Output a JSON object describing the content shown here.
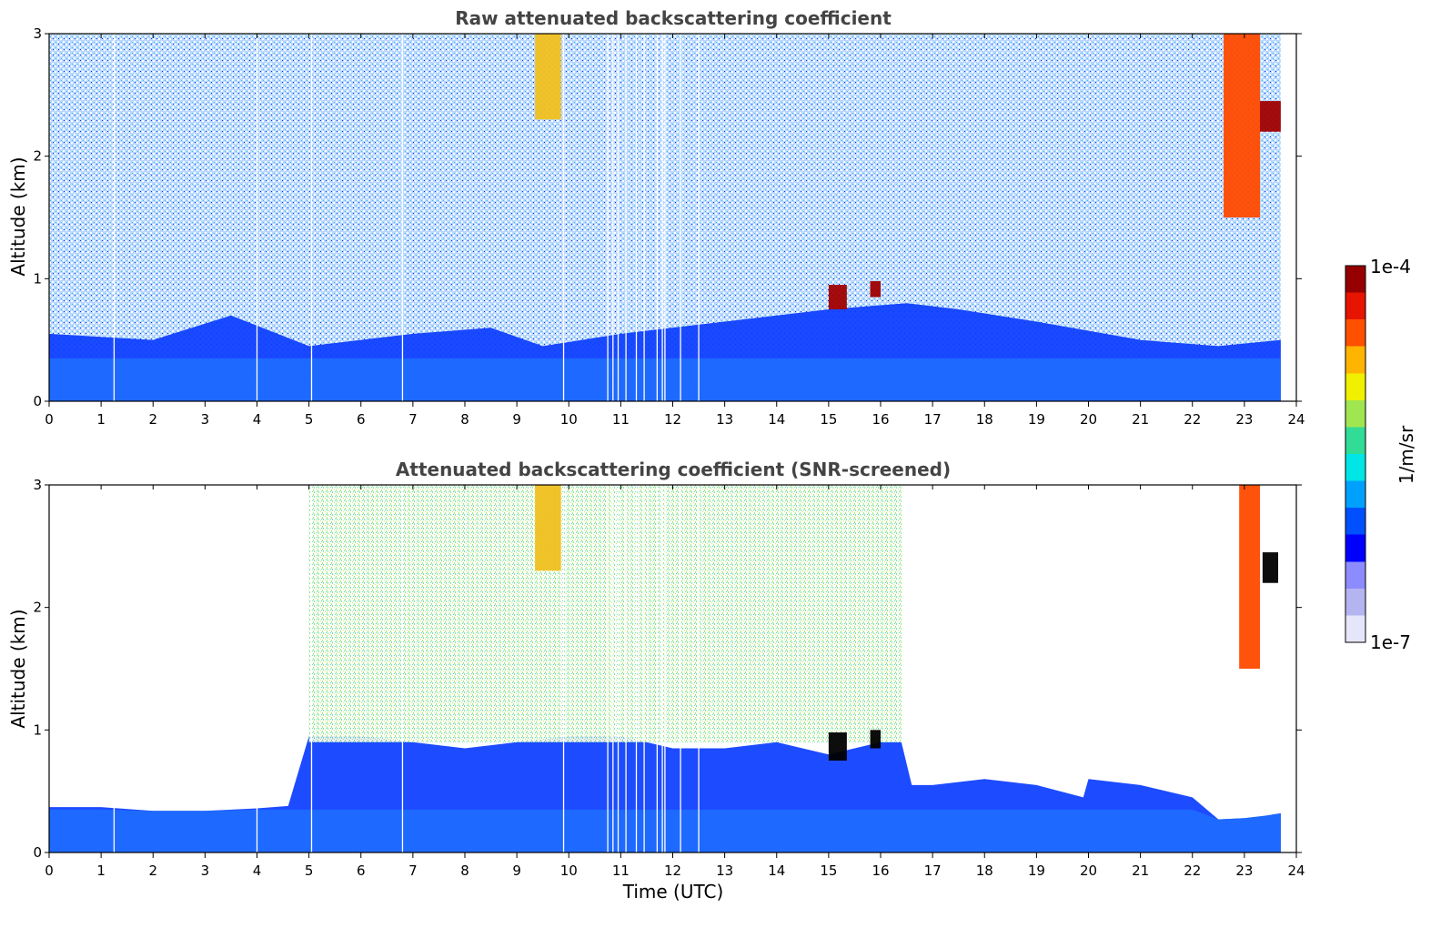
{
  "chart_data": [
    {
      "type": "heatmap",
      "title": "Raw attenuated backscattering coefficient",
      "xlabel": "",
      "ylabel": "Altitude (km)",
      "xlim": [
        0,
        24
      ],
      "ylim": [
        0,
        3
      ],
      "xticks": [
        "0",
        "1",
        "2",
        "3",
        "4",
        "5",
        "6",
        "7",
        "8",
        "9",
        "10",
        "11",
        "12",
        "13",
        "14",
        "15",
        "16",
        "17",
        "18",
        "19",
        "20",
        "21",
        "22",
        "23",
        "24"
      ],
      "yticks": [
        "0",
        "1",
        "2",
        "3"
      ],
      "data_end_time": 23.7,
      "features": [
        {
          "kind": "boundary_layer",
          "x": [
            0,
            2,
            3.5,
            5,
            6,
            7,
            8.5,
            9.5,
            11,
            13,
            15,
            16.5,
            17.5,
            19,
            21,
            22.5,
            23.7
          ],
          "top_km": [
            0.55,
            0.5,
            0.7,
            0.45,
            0.5,
            0.55,
            0.6,
            0.45,
            0.55,
            0.65,
            0.75,
            0.8,
            0.75,
            0.65,
            0.5,
            0.45,
            0.5
          ]
        },
        {
          "kind": "aerosol_streak",
          "x_start": 9.35,
          "x_end": 9.85,
          "alt_bottom_km": 2.3,
          "alt_top_km": 3.0,
          "level": "yellow-orange"
        },
        {
          "kind": "cloud",
          "x_start": 15.0,
          "x_end": 15.35,
          "alt_bottom_km": 0.75,
          "alt_top_km": 0.95,
          "level": "dark-red"
        },
        {
          "kind": "cloud",
          "x_start": 15.8,
          "x_end": 16.0,
          "alt_bottom_km": 0.85,
          "alt_top_km": 0.98,
          "level": "dark-red"
        },
        {
          "kind": "cloud",
          "x_start": 22.6,
          "x_end": 23.3,
          "alt_bottom_km": 1.5,
          "alt_top_km": 3.0,
          "level": "red-orange"
        },
        {
          "kind": "cloud",
          "x_start": 23.3,
          "x_end": 23.7,
          "alt_bottom_km": 2.2,
          "alt_top_km": 2.45,
          "level": "dark-red"
        }
      ],
      "gap_times": [
        1.25,
        4.0,
        5.05,
        6.8,
        9.9,
        10.75,
        10.85,
        10.95,
        11.1,
        11.3,
        11.45,
        11.7,
        11.8,
        11.85,
        12.15,
        12.5
      ]
    },
    {
      "type": "heatmap",
      "title": "Attenuated backscattering coefficient (SNR-screened)",
      "xlabel": "Time (UTC)",
      "ylabel": "Altitude (km)",
      "xlim": [
        0,
        24
      ],
      "ylim": [
        0,
        3
      ],
      "xticks": [
        "0",
        "1",
        "2",
        "3",
        "4",
        "5",
        "6",
        "7",
        "8",
        "9",
        "10",
        "11",
        "12",
        "13",
        "14",
        "15",
        "16",
        "17",
        "18",
        "19",
        "20",
        "21",
        "22",
        "23",
        "24"
      ],
      "yticks": [
        "0",
        "1",
        "2",
        "3"
      ],
      "data_end_time": 23.7,
      "features": [
        {
          "kind": "valid_region",
          "x": [
            0,
            1,
            2,
            3,
            4,
            4.6,
            5,
            6,
            7,
            8,
            9,
            10,
            11,
            12,
            13,
            14,
            15,
            16,
            16.4,
            16.6,
            17,
            18,
            19,
            19.9,
            20,
            21,
            22,
            22.5,
            23,
            23.4,
            23.7
          ],
          "top_km": [
            0.37,
            0.37,
            0.34,
            0.34,
            0.36,
            0.38,
            0.95,
            0.95,
            0.9,
            0.85,
            0.9,
            0.95,
            0.95,
            0.85,
            0.85,
            0.9,
            0.8,
            0.9,
            0.9,
            0.55,
            0.55,
            0.6,
            0.55,
            0.45,
            0.6,
            0.55,
            0.45,
            0.27,
            0.28,
            0.3,
            0.32
          ]
        },
        {
          "kind": "aerosol_layer",
          "x_start": 5.0,
          "x_end": 16.4,
          "alt_bottom_km": 0.9,
          "alt_top_km": 3.0,
          "level": "green-yellow"
        },
        {
          "kind": "aerosol_streak",
          "x_start": 9.35,
          "x_end": 9.85,
          "alt_bottom_km": 2.3,
          "alt_top_km": 3.0,
          "level": "yellow-orange"
        },
        {
          "kind": "cloud",
          "x_start": 15.0,
          "x_end": 15.35,
          "alt_bottom_km": 0.75,
          "alt_top_km": 0.98,
          "level": "black"
        },
        {
          "kind": "cloud",
          "x_start": 15.8,
          "x_end": 16.0,
          "alt_bottom_km": 0.85,
          "alt_top_km": 1.0,
          "level": "black"
        },
        {
          "kind": "cloud",
          "x_start": 22.9,
          "x_end": 23.3,
          "alt_bottom_km": 1.5,
          "alt_top_km": 3.0,
          "level": "red-orange"
        },
        {
          "kind": "cloud",
          "x_start": 23.35,
          "x_end": 23.65,
          "alt_bottom_km": 2.2,
          "alt_top_km": 2.45,
          "level": "black"
        }
      ],
      "gap_times": [
        1.25,
        4.0,
        5.05,
        6.8,
        9.9,
        10.75,
        10.85,
        10.95,
        11.1,
        11.3,
        11.45,
        11.7,
        11.8,
        11.85,
        12.15,
        12.5
      ]
    }
  ],
  "colorbar": {
    "label": "1/m/sr",
    "min_label": "1e-7",
    "max_label": "1e-4",
    "scale": "log",
    "colormap": [
      "#e6e6fa",
      "#b4b4f0",
      "#8c8cff",
      "#0000ff",
      "#0050ff",
      "#00a0ff",
      "#00e6e6",
      "#32dc96",
      "#a0e650",
      "#f0f000",
      "#ffb400",
      "#ff5000",
      "#e61400",
      "#960000"
    ]
  }
}
